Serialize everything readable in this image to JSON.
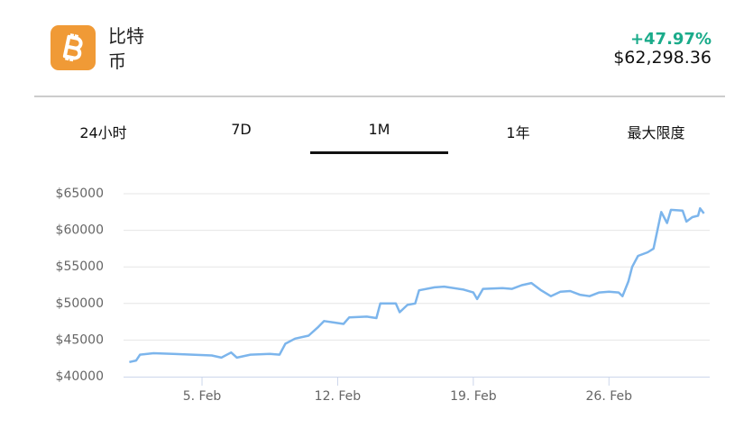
{
  "header": {
    "name": "比特币",
    "change": "+47.97%",
    "price": "$62,298.36"
  },
  "tabs": [
    "24小时",
    "7D",
    "1M",
    "1年",
    "最大限度"
  ],
  "chart_data": {
    "type": "line",
    "color": "#7cb5ec",
    "grid": true,
    "x": [
      1.25,
      1.6,
      1.8,
      2.5,
      3.5,
      4.5,
      5.5,
      6.0,
      6.5,
      6.8,
      7.5,
      8.5,
      9.0,
      9.3,
      9.8,
      10.5,
      11.0,
      11.3,
      11.8,
      12.3,
      12.6,
      13.5,
      14.0,
      14.2,
      15.0,
      15.2,
      15.6,
      16.0,
      16.2,
      17.0,
      17.5,
      18.5,
      19.0,
      19.2,
      19.5,
      20.5,
      21.0,
      21.5,
      22.0,
      22.5,
      23.0,
      23.5,
      24.0,
      24.5,
      25.0,
      25.5,
      26.0,
      26.5,
      26.7,
      27.0,
      27.2,
      27.5,
      28.0,
      28.3,
      28.5,
      28.7,
      29.0,
      29.2,
      29.8,
      30.0,
      30.3,
      30.6,
      30.7,
      30.9
    ],
    "values": [
      42000,
      42200,
      43000,
      43200,
      43100,
      43000,
      42900,
      42600,
      43300,
      42600,
      43000,
      43100,
      43000,
      44500,
      45200,
      45600,
      46800,
      47600,
      47400,
      47200,
      48100,
      48200,
      48000,
      50000,
      50000,
      48800,
      49800,
      50000,
      51800,
      52200,
      52300,
      51900,
      51500,
      50600,
      52000,
      52100,
      52000,
      52500,
      52800,
      51800,
      51000,
      51600,
      51700,
      51200,
      51000,
      51500,
      51600,
      51500,
      51000,
      53000,
      55000,
      56500,
      57000,
      57500,
      60000,
      62500,
      61000,
      62800,
      62700,
      61200,
      61800,
      62000,
      63000,
      62300
    ],
    "xlim": [
      0.95,
      31.2
    ],
    "xticks": [
      {
        "value": 5,
        "label": "5. Feb"
      },
      {
        "value": 12,
        "label": "12. Feb"
      },
      {
        "value": 19,
        "label": "19. Feb"
      },
      {
        "value": 26,
        "label": "26. Feb"
      }
    ],
    "ylim": [
      40000,
      65000
    ],
    "yticks": [
      {
        "value": 40000,
        "label": "$40000"
      },
      {
        "value": 45000,
        "label": "$45000"
      },
      {
        "value": 50000,
        "label": "$50000"
      },
      {
        "value": 55000,
        "label": "$55000"
      },
      {
        "value": 60000,
        "label": "$60000"
      },
      {
        "value": 65000,
        "label": "$65000"
      }
    ]
  }
}
